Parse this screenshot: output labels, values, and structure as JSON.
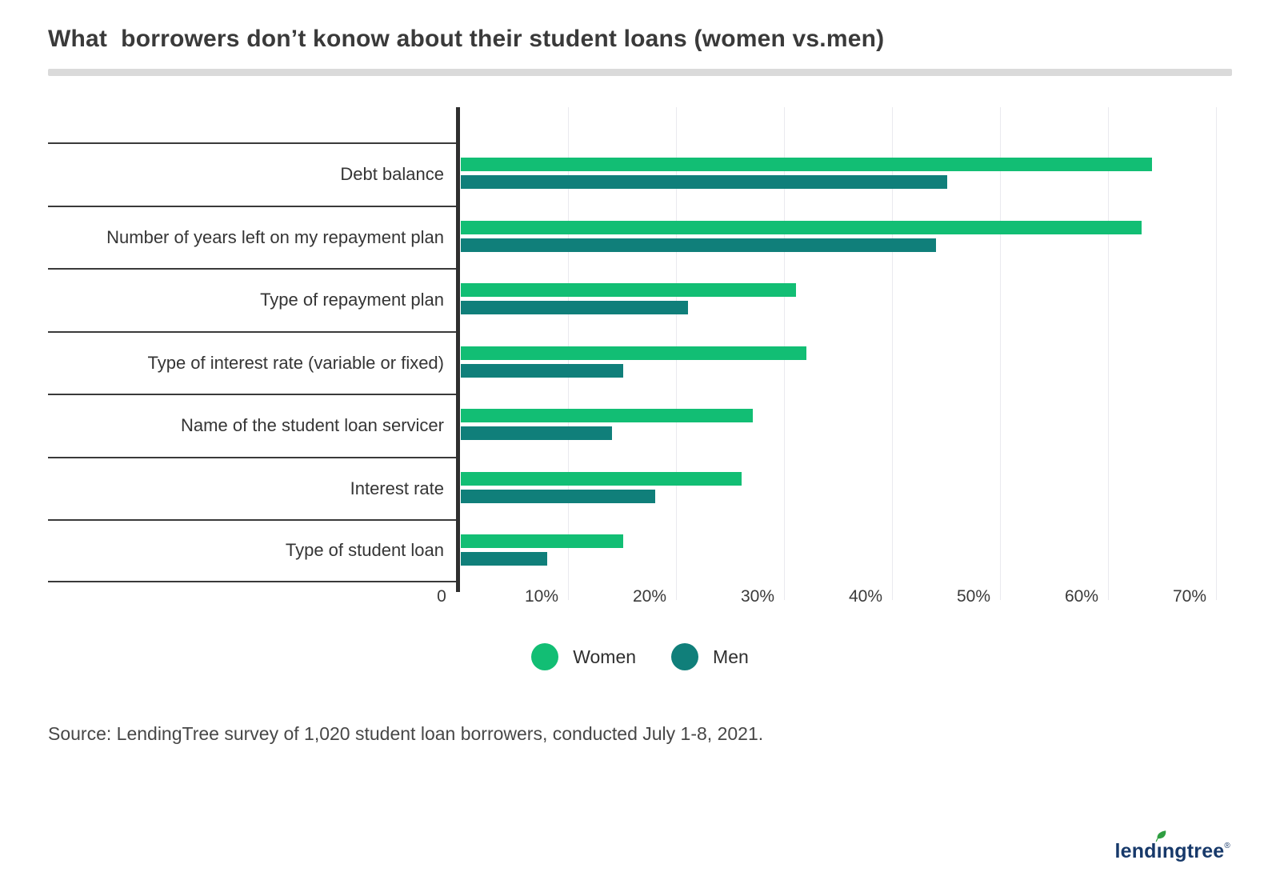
{
  "title": "What  borrowers don’t konow about their student loans (women vs.men)",
  "chart_data": {
    "type": "bar",
    "orientation": "horizontal",
    "title": "What  borrowers don’t konow about their student loans (women vs.men)",
    "categories": [
      "Debt balance",
      "Number of years left on my repayment plan",
      "Type of repayment plan",
      "Type of interest rate (variable or fixed)",
      "Name of the student loan servicer",
      "Interest rate",
      "Type of student loan"
    ],
    "series": [
      {
        "name": "Women",
        "color": "#12BE74",
        "values": [
          64,
          63,
          31,
          32,
          27,
          26,
          15
        ]
      },
      {
        "name": "Men",
        "color": "#107F7A",
        "values": [
          45,
          44,
          21,
          15,
          14,
          18,
          8
        ]
      }
    ],
    "xlabel": "",
    "ylabel": "",
    "xlim": [
      0,
      70
    ],
    "x_ticks": [
      "0",
      "10%",
      "20%",
      "30%",
      "40%",
      "50%",
      "60%",
      "70%"
    ],
    "grid": true,
    "legend_position": "bottom"
  },
  "legend": {
    "items": [
      {
        "label": "Women",
        "color": "#12BE74"
      },
      {
        "label": "Men",
        "color": "#107F7A"
      }
    ]
  },
  "source": "Source: LendingTree survey of 1,020 student loan borrowers, conducted July 1-8, 2021.",
  "logo": {
    "prefix": "lend",
    "dotless_i": "ı",
    "suffix": "ngtree",
    "registered": "®",
    "wordmark_color": "#17396a",
    "leaf_color": "#2f9e41"
  },
  "colors": {
    "women_bar": "#12BE74",
    "men_bar": "#107F7A",
    "axis_line": "#2f2f2f",
    "gridline": "#e9e9ee",
    "divider": "#dadada"
  }
}
